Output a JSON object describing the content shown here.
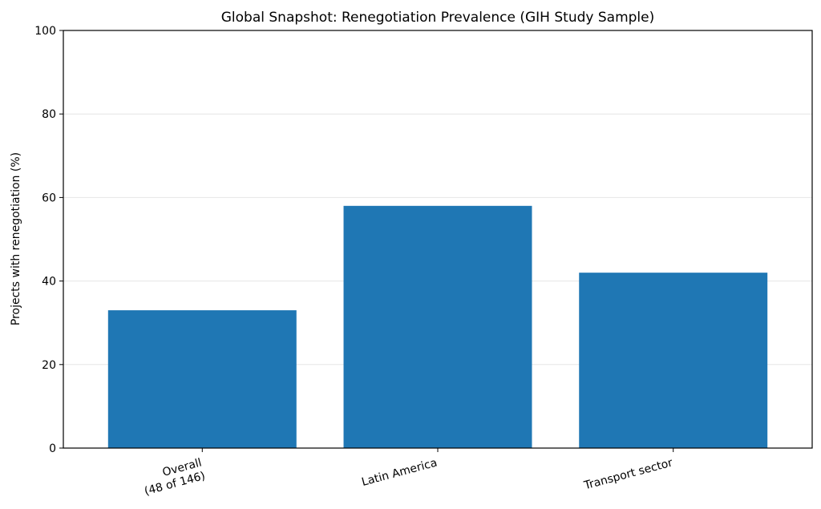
{
  "chart_data": {
    "type": "bar",
    "title": "Global Snapshot: Renegotiation Prevalence (GIH Study Sample)",
    "xlabel": "",
    "ylabel": "Projects with renegotiation (%)",
    "categories": [
      "Overall\n(48 of 146)",
      "Latin America",
      "Transport sector"
    ],
    "values": [
      33,
      58,
      42
    ],
    "ylim": [
      0,
      100
    ],
    "yticks": [
      0,
      20,
      40,
      60,
      80,
      100
    ],
    "grid": "y",
    "bar_color": "#1f77b4",
    "xtick_rotation_deg": 15
  }
}
